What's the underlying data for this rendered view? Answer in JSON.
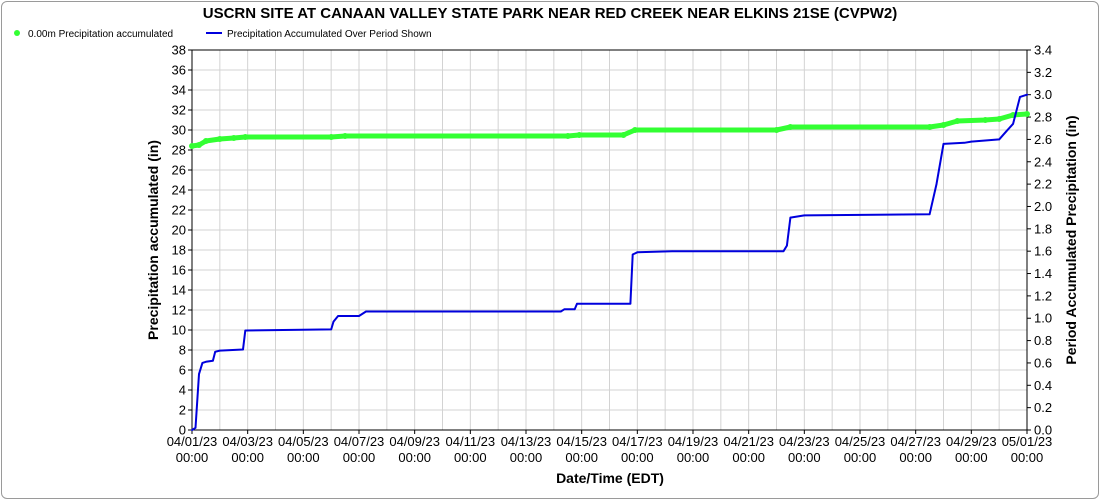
{
  "chart_data": {
    "type": "line",
    "title": "USCRN SITE AT CANAAN VALLEY STATE PARK NEAR RED CREEK NEAR ELKINS 21SE (CVPW2)",
    "xlabel": "Date/Time (EDT)",
    "ylabel": "Precipitation accumulated (in)",
    "y2label": "Period Accumulated Precipitation (in)",
    "ylim": [
      0,
      38
    ],
    "y2lim": [
      0,
      3.4
    ],
    "yticks": [
      "0",
      "2",
      "4",
      "6",
      "8",
      "10",
      "12",
      "14",
      "16",
      "18",
      "20",
      "22",
      "24",
      "26",
      "28",
      "30",
      "32",
      "34",
      "36",
      "38"
    ],
    "y2ticks": [
      "0.0",
      "0.2",
      "0.4",
      "0.6",
      "0.8",
      "1.0",
      "1.2",
      "1.4",
      "1.6",
      "1.8",
      "2.0",
      "2.2",
      "2.4",
      "2.6",
      "2.8",
      "3.0",
      "3.2",
      "3.4"
    ],
    "xlim": [
      "2023-04-01 00:00",
      "2023-05-01 00:00"
    ],
    "xticks": [
      {
        "date": "04/01/23",
        "time": "00:00"
      },
      {
        "date": "04/03/23",
        "time": "00:00"
      },
      {
        "date": "04/05/23",
        "time": "00:00"
      },
      {
        "date": "04/07/23",
        "time": "00:00"
      },
      {
        "date": "04/09/23",
        "time": "00:00"
      },
      {
        "date": "04/11/23",
        "time": "00:00"
      },
      {
        "date": "04/13/23",
        "time": "00:00"
      },
      {
        "date": "04/15/23",
        "time": "00:00"
      },
      {
        "date": "04/17/23",
        "time": "00:00"
      },
      {
        "date": "04/19/23",
        "time": "00:00"
      },
      {
        "date": "04/21/23",
        "time": "00:00"
      },
      {
        "date": "04/23/23",
        "time": "00:00"
      },
      {
        "date": "04/25/23",
        "time": "00:00"
      },
      {
        "date": "04/27/23",
        "time": "00:00"
      },
      {
        "date": "04/29/23",
        "time": "00:00"
      },
      {
        "date": "05/01/23",
        "time": "00:00"
      }
    ],
    "grid": true,
    "legend_position": "top-left",
    "series": [
      {
        "name": "0.00m Precipitation accumulated",
        "axis": "left",
        "color": "#33ff33",
        "style": "thick-dots",
        "x": [
          "2023-04-01 00:00",
          "2023-04-01 06:00",
          "2023-04-01 12:00",
          "2023-04-02 00:00",
          "2023-04-02 12:00",
          "2023-04-02 22:00",
          "2023-04-06 00:00",
          "2023-04-06 12:00",
          "2023-04-14 12:00",
          "2023-04-14 22:00",
          "2023-04-16 12:00",
          "2023-04-16 22:00",
          "2023-04-22 00:00",
          "2023-04-22 12:00",
          "2023-04-27 12:00",
          "2023-04-28 00:00",
          "2023-04-28 12:00",
          "2023-04-29 12:00",
          "2023-04-30 00:00",
          "2023-04-30 12:00",
          "2023-05-01 00:00"
        ],
        "values": [
          28.4,
          28.5,
          28.9,
          29.1,
          29.2,
          29.3,
          29.3,
          29.4,
          29.4,
          29.5,
          29.5,
          30.0,
          30.0,
          30.3,
          30.3,
          30.5,
          30.9,
          31.0,
          31.1,
          31.5,
          31.6
        ]
      },
      {
        "name": "Precipitation Accumulated Over Period Shown",
        "axis": "right",
        "color": "#0000dd",
        "style": "line",
        "x": [
          "2023-04-01 00:00",
          "2023-04-01 03:00",
          "2023-04-01 06:00",
          "2023-04-01 09:00",
          "2023-04-01 12:00",
          "2023-04-01 18:00",
          "2023-04-01 20:00",
          "2023-04-02 00:00",
          "2023-04-02 20:00",
          "2023-04-02 22:00",
          "2023-04-06 00:00",
          "2023-04-06 02:00",
          "2023-04-06 06:00",
          "2023-04-07 00:00",
          "2023-04-07 06:00",
          "2023-04-14 06:00",
          "2023-04-14 09:00",
          "2023-04-14 18:00",
          "2023-04-14 20:00",
          "2023-04-16 18:00",
          "2023-04-16 20:00",
          "2023-04-17 00:00",
          "2023-04-18 06:00",
          "2023-04-22 06:00",
          "2023-04-22 09:00",
          "2023-04-22 12:00",
          "2023-04-23 00:00",
          "2023-04-27 12:00",
          "2023-04-27 18:00",
          "2023-04-28 00:00",
          "2023-04-28 18:00",
          "2023-04-29 00:00",
          "2023-04-29 12:00",
          "2023-04-30 00:00",
          "2023-04-30 06:00",
          "2023-04-30 12:00",
          "2023-04-30 18:00",
          "2023-05-01 00:00"
        ],
        "values": [
          0.0,
          0.02,
          0.5,
          0.6,
          0.61,
          0.62,
          0.7,
          0.71,
          0.72,
          0.89,
          0.9,
          0.97,
          1.02,
          1.02,
          1.06,
          1.06,
          1.08,
          1.08,
          1.13,
          1.13,
          1.57,
          1.59,
          1.6,
          1.6,
          1.65,
          1.9,
          1.92,
          1.93,
          2.2,
          2.56,
          2.57,
          2.58,
          2.59,
          2.6,
          2.67,
          2.74,
          2.98,
          3.0
        ]
      }
    ]
  }
}
